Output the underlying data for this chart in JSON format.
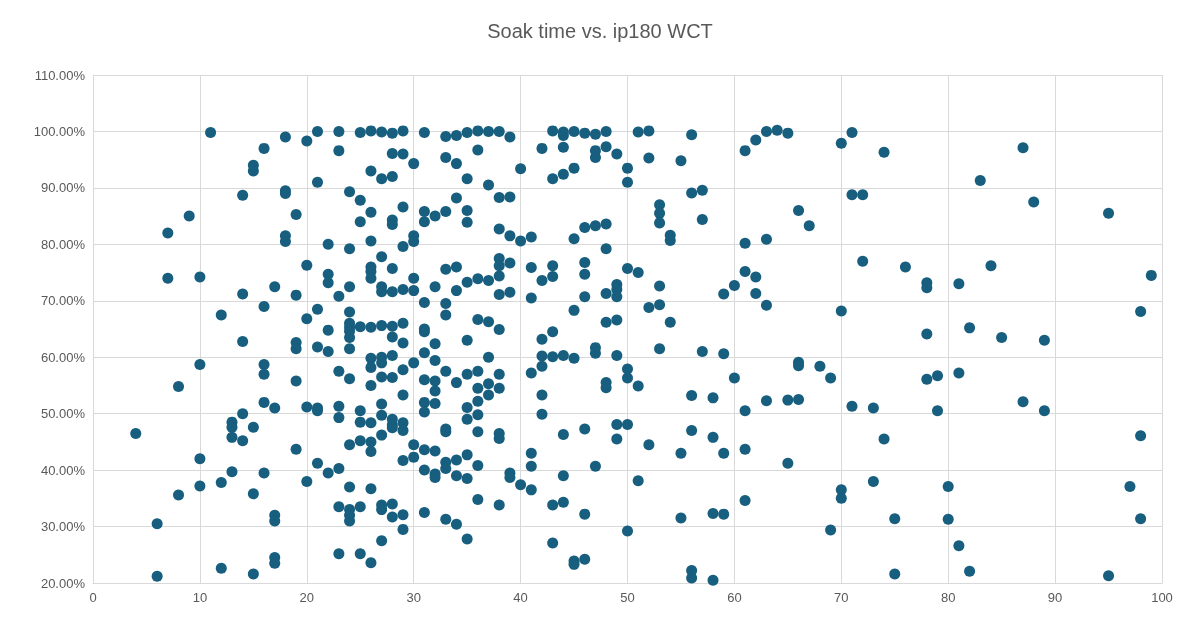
{
  "chart_data": {
    "type": "scatter",
    "title": "Soak time vs. ip180 WCT",
    "xlim": [
      0,
      100
    ],
    "xticks": [
      0,
      10,
      20,
      30,
      40,
      50,
      60,
      70,
      80,
      90,
      100
    ],
    "ylim": [
      20,
      110
    ],
    "yticks": [
      {
        "value": 20,
        "label": "20.00%"
      },
      {
        "value": 30,
        "label": "30.00%"
      },
      {
        "value": 40,
        "label": "40.00%"
      },
      {
        "value": 50,
        "label": "50.00%"
      },
      {
        "value": 60,
        "label": "60.00%"
      },
      {
        "value": 70,
        "label": "70.00%"
      },
      {
        "value": 80,
        "label": "80.00%"
      },
      {
        "value": 90,
        "label": "90.00%"
      },
      {
        "value": 100,
        "label": "100.00%"
      },
      {
        "value": 110,
        "label": "110.00%"
      }
    ],
    "grid": true,
    "marker": "circle",
    "series": [
      {
        "color": "#175e7f",
        "x": [
          4,
          6,
          6,
          7,
          7,
          8,
          8,
          9,
          10,
          10,
          10,
          10,
          11,
          12,
          12,
          12,
          13,
          13,
          13,
          13,
          14,
          14,
          14,
          14,
          14,
          15,
          15,
          15,
          15,
          15,
          16,
          16,
          16,
          16,
          16,
          16,
          17,
          17,
          17,
          17,
          17,
          17,
          18,
          18,
          18,
          18,
          18,
          19,
          19,
          19,
          19,
          19,
          19,
          20,
          20,
          20,
          20,
          20,
          21,
          21,
          21,
          21,
          21,
          21,
          21,
          22,
          22,
          22,
          22,
          22,
          22,
          23,
          23,
          23,
          23,
          23,
          23,
          23,
          23,
          23,
          24,
          24,
          24,
          24,
          24,
          24,
          24,
          24,
          24,
          24,
          24,
          24,
          24,
          24,
          24,
          25,
          25,
          25,
          25,
          25,
          25,
          25,
          25,
          25,
          26,
          26,
          26,
          26,
          26,
          26,
          26,
          26,
          26,
          26,
          26,
          26,
          26,
          26,
          26,
          26,
          27,
          27,
          27,
          27,
          27,
          27,
          27,
          27,
          27,
          27,
          27,
          27,
          27,
          27,
          27,
          28,
          28,
          28,
          28,
          28,
          28,
          28,
          28,
          28,
          28,
          28,
          28,
          28,
          28,
          28,
          28,
          29,
          29,
          29,
          29,
          29,
          29,
          29,
          29,
          29,
          29,
          29,
          29,
          29,
          29,
          30,
          30,
          30,
          30,
          30,
          30,
          30,
          30,
          31,
          31,
          31,
          31,
          31,
          31,
          31,
          31,
          31,
          31,
          31,
          31,
          31,
          32,
          32,
          32,
          32,
          32,
          32,
          32,
          32,
          32,
          32,
          33,
          33,
          33,
          33,
          33,
          33,
          33,
          33,
          33,
          33,
          33,
          33,
          34,
          34,
          34,
          34,
          34,
          34,
          34,
          34,
          34,
          35,
          35,
          35,
          35,
          35,
          35,
          35,
          35,
          35,
          35,
          35,
          35,
          36,
          36,
          36,
          36,
          36,
          36,
          36,
          36,
          36,
          36,
          36,
          37,
          37,
          37,
          37,
          37,
          37,
          37,
          38,
          38,
          38,
          38,
          38,
          38,
          38,
          38,
          38,
          38,
          38,
          38,
          38,
          39,
          39,
          39,
          39,
          39,
          39,
          39,
          40,
          40,
          40,
          41,
          41,
          41,
          41,
          41,
          41,
          41,
          42,
          42,
          42,
          42,
          42,
          42,
          42,
          43,
          43,
          43,
          43,
          43,
          43,
          43,
          43,
          44,
          44,
          44,
          44,
          44,
          44,
          44,
          44,
          45,
          45,
          45,
          45,
          45,
          45,
          45,
          46,
          46,
          46,
          46,
          46,
          46,
          46,
          46,
          47,
          47,
          47,
          47,
          47,
          47,
          47,
          48,
          48,
          48,
          48,
          48,
          48,
          48,
          48,
          49,
          49,
          49,
          49,
          49,
          49,
          49,
          49,
          50,
          50,
          50,
          50,
          50,
          50,
          50,
          51,
          51,
          51,
          51,
          52,
          52,
          52,
          52,
          53,
          53,
          53,
          53,
          53,
          53,
          54,
          54,
          54,
          55,
          55,
          55,
          56,
          56,
          56,
          56,
          56,
          56,
          57,
          57,
          57,
          58,
          58,
          58,
          58,
          59,
          59,
          59,
          59,
          60,
          60,
          61,
          61,
          61,
          61,
          61,
          61,
          62,
          62,
          62,
          63,
          63,
          63,
          63,
          64,
          65,
          65,
          65,
          66,
          66,
          66,
          66,
          67,
          68,
          69,
          69,
          70,
          70,
          70,
          70,
          71,
          71,
          71,
          72,
          72,
          73,
          73,
          74,
          74,
          75,
          75,
          76,
          78,
          78,
          78,
          78,
          79,
          79,
          80,
          80,
          81,
          81,
          81,
          82,
          82,
          83,
          84,
          85,
          87,
          87,
          88,
          89,
          89,
          95,
          95,
          97,
          98,
          98,
          98,
          99
        ],
        "values": [
          46.5,
          30.5,
          21.2,
          82,
          74,
          54.8,
          35.6,
          85,
          74.2,
          58.7,
          42,
          37.2,
          99.8,
          67.5,
          37.8,
          22.6,
          48.5,
          47.6,
          45.8,
          39.7,
          88.7,
          71.2,
          62.8,
          50,
          45.2,
          94,
          93,
          47.6,
          35.8,
          21.6,
          97,
          69,
          58.7,
          57,
          52,
          39.5,
          72.5,
          51,
          32,
          31,
          24.5,
          23.5,
          99,
          89.5,
          89,
          81.5,
          80.5,
          85.3,
          71,
          62.6,
          61.5,
          55.8,
          43.7,
          98.3,
          76.3,
          66.8,
          51.2,
          38,
          100,
          91,
          68.5,
          61.8,
          51,
          50.5,
          41.2,
          80,
          74.7,
          73.2,
          64.8,
          61,
          39.5,
          100,
          96.6,
          70.8,
          57.5,
          51.3,
          49.3,
          40.3,
          33.5,
          25.2,
          89.3,
          79.2,
          72.5,
          68,
          66,
          65.3,
          64.6,
          63.5,
          61.5,
          56.2,
          44.5,
          37,
          33,
          32,
          31,
          99.8,
          87.8,
          84,
          65.4,
          50.5,
          48.5,
          45.2,
          33.5,
          25.2,
          100.1,
          93,
          85.7,
          80.6,
          76,
          75.2,
          74,
          65.3,
          59.8,
          58.2,
          55,
          48.4,
          45,
          43.3,
          36.7,
          23.6,
          99.9,
          91.6,
          77.8,
          72.5,
          71.6,
          65.6,
          60,
          59,
          56.5,
          51.7,
          49.7,
          46.2,
          33.8,
          33,
          27.5,
          99.7,
          96.1,
          92,
          84.3,
          83.5,
          75.7,
          71.6,
          65.5,
          63.6,
          60.3,
          56.4,
          49,
          48,
          47.5,
          34,
          31.7,
          100.1,
          96,
          86.6,
          79.6,
          72,
          66,
          62.5,
          57.8,
          53.3,
          48.4,
          47,
          41.7,
          32.1,
          29.5,
          94.3,
          81.5,
          80.5,
          74,
          71.8,
          59,
          44.5,
          42.3,
          99.8,
          85.8,
          84,
          69.7,
          65,
          64.5,
          60.8,
          56,
          52,
          50.3,
          43.6,
          40,
          32.5,
          85,
          72.5,
          62.4,
          59.4,
          55.8,
          54,
          51.8,
          43.4,
          39.3,
          38.7,
          99.1,
          95.4,
          85.8,
          75.6,
          69.5,
          67.5,
          57.5,
          47.3,
          46.8,
          41.4,
          40.3,
          31.3,
          99.3,
          94.3,
          88.2,
          76,
          71.8,
          55.5,
          41.8,
          39,
          30.4,
          99.8,
          91.6,
          86,
          83.9,
          73.3,
          63,
          57,
          51.1,
          49,
          42.7,
          38.5,
          27.8,
          100.1,
          96.7,
          73.9,
          66.7,
          57.5,
          54.5,
          52.2,
          49.8,
          46.8,
          40.8,
          34.8,
          100,
          90.5,
          73.6,
          66.3,
          60,
          55.3,
          53.3,
          100,
          88.3,
          82.7,
          77.5,
          76.2,
          74.4,
          71.1,
          64.9,
          57,
          54.5,
          46.5,
          45.6,
          33.8,
          99,
          88.4,
          81.5,
          76.7,
          71.5,
          39.5,
          38.7,
          93.4,
          80.6,
          37.4,
          81.3,
          75.9,
          70.5,
          57.2,
          43,
          40.7,
          36.5,
          97,
          73.6,
          63.2,
          60.2,
          58.4,
          53.3,
          49.9,
          100.1,
          91.6,
          76.2,
          74.3,
          64.5,
          60.1,
          33.8,
          27.1,
          99.3,
          99.9,
          97.2,
          92.4,
          60.3,
          46.3,
          39,
          34.3,
          100,
          93.5,
          81,
          68.3,
          59.8,
          23.9,
          23.3,
          99.7,
          83,
          76.8,
          74.7,
          70.7,
          47.3,
          32.2,
          24.2,
          99.5,
          96.6,
          95.4,
          83.3,
          61.7,
          60.7,
          40.7,
          100,
          97.3,
          83.6,
          79.2,
          71.3,
          66.2,
          54.6,
          55.5,
          96,
          72.9,
          72,
          70.7,
          66.6,
          60.3,
          48.1,
          45.5,
          93.5,
          91,
          75.7,
          57.9,
          56.3,
          48.1,
          29.2,
          99.9,
          75,
          54.9,
          38.1,
          100.1,
          95.3,
          68.8,
          44.5,
          87,
          85.5,
          83.8,
          72.6,
          69.3,
          61.5,
          81.6,
          80.7,
          66.2,
          94.8,
          43,
          31.5,
          99.4,
          89.1,
          53.2,
          47,
          22.2,
          20.9,
          89.6,
          84.4,
          61,
          52.8,
          45.8,
          32.3,
          20.5,
          71.2,
          60.6,
          43,
          32.2,
          72.7,
          56.3,
          96.6,
          80.2,
          75.2,
          50.5,
          43.7,
          34.6,
          98.5,
          74.2,
          71.3,
          100,
          80.9,
          69.2,
          52.3,
          100.2,
          99.7,
          52.4,
          41.2,
          86,
          59.1,
          58.5,
          52.5,
          83.3,
          58.4,
          56.3,
          29.4,
          97.9,
          68.2,
          36.5,
          35,
          99.8,
          88.8,
          51.3,
          88.8,
          77,
          51,
          38,
          96.3,
          45.5,
          31.4,
          21.6,
          76,
          73.2,
          72.3,
          64.1,
          56.1,
          56.7,
          50.5,
          37.1,
          31.3,
          73,
          57.2,
          26.6,
          65.2,
          22.1,
          91.3,
          76.2,
          63.5,
          97.1,
          52.1,
          87.5,
          63,
          50.5,
          85.5,
          21.3,
          37.1,
          68.1,
          46.1,
          31.4,
          74.5
        ]
      }
    ]
  }
}
